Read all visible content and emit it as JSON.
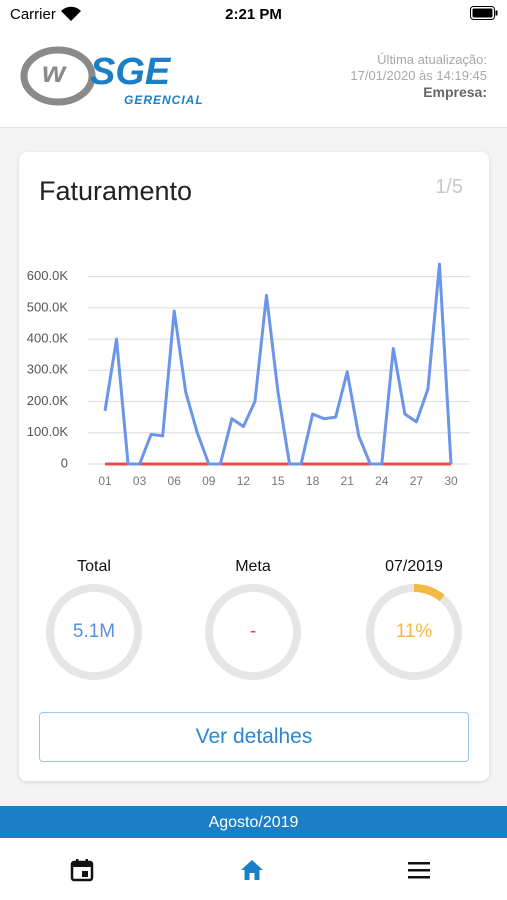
{
  "status_bar": {
    "carrier": "Carrier",
    "time": "2:21 PM"
  },
  "header": {
    "logo_main": "SGE",
    "logo_sub": "GERENCIAL",
    "update_label": "Última atualização:",
    "update_time": "17/01/2020 às 14:19:45",
    "company_label": "Empresa:"
  },
  "card": {
    "title": "Faturamento",
    "page": "1/5",
    "button": "Ver detalhes"
  },
  "chart_data": {
    "type": "line",
    "categories": [
      "01",
      null,
      null,
      "03",
      null,
      null,
      "06",
      null,
      null,
      "09",
      null,
      null,
      "12",
      null,
      null,
      "15",
      null,
      null,
      "18",
      null,
      null,
      "21",
      null,
      null,
      "24",
      null,
      null,
      "27",
      null,
      null,
      "30"
    ],
    "series": [
      {
        "color": "#6b95e8",
        "values": [
          170000,
          400000,
          0,
          0,
          95000,
          90000,
          490000,
          230000,
          100000,
          0,
          0,
          145000,
          120000,
          200000,
          540000,
          230000,
          0,
          0,
          160000,
          145000,
          150000,
          295000,
          90000,
          0,
          0,
          370000,
          160000,
          135000,
          240000,
          640000,
          0
        ]
      },
      {
        "color": "#ec4a4a",
        "values": [
          0,
          0,
          0,
          0,
          0,
          0,
          0,
          0,
          0,
          0,
          0,
          0,
          0,
          0,
          0,
          0,
          0,
          0,
          0,
          0,
          0,
          0,
          0,
          0,
          0,
          0,
          0,
          0,
          0,
          0,
          0
        ]
      }
    ],
    "ylim": [
      0,
      650000
    ],
    "yticks": [
      0,
      {
        "value": 100000,
        "label": "100.0K"
      },
      {
        "value": 200000,
        "label": "200.0K"
      },
      {
        "value": 300000,
        "label": "300.0K"
      },
      {
        "value": 400000,
        "label": "400.0K"
      },
      {
        "value": 500000,
        "label": "500.0K"
      },
      {
        "value": 600000,
        "label": "600.0K"
      }
    ],
    "grid": true
  },
  "gauges": [
    {
      "title": "Total",
      "text": "5.1M",
      "color": "#5b8de8"
    },
    {
      "title": "Meta",
      "text": "-",
      "color": "#e8413c"
    },
    {
      "title": "07/2019",
      "percent": 11,
      "value_label": "11%",
      "color": "#f4b942"
    }
  ],
  "footer": {
    "period": "Agosto/2019"
  }
}
